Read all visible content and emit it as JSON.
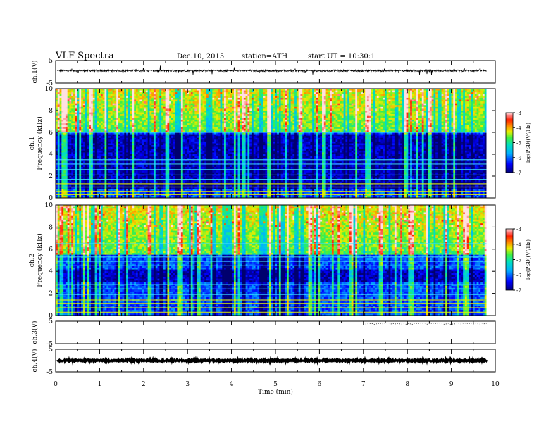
{
  "header": {
    "title": "VLF  Spectra",
    "date": "Dec.10, 2015",
    "station": "station=ATH",
    "start": "start  UT  =    10:30:1"
  },
  "chart_data": [
    {
      "type": "line",
      "name": "ch1-waveform",
      "ylabel": "ch.1(V)",
      "ylim": [
        -5,
        5
      ],
      "yticks": [
        "5",
        "-5"
      ],
      "baseline": 0.5,
      "noise_amplitude": 0.4,
      "spike_amplitude": 2.0
    },
    {
      "type": "heatmap",
      "name": "ch1-spectrogram",
      "ylabel": "ch.1\nFrequency (kHz)",
      "ylim": [
        0,
        10
      ],
      "yticks": [
        "0",
        "2",
        "4",
        "6",
        "8",
        "10"
      ],
      "colorbar": {
        "label": "log(PSD)(V²/Hz)",
        "range": [
          -7,
          -3
        ],
        "ticks": [
          "-3",
          "-4",
          "-5",
          "-6",
          "-7"
        ]
      },
      "quiet_band_khz": [
        0.8,
        5.8
      ],
      "bright_band_khz": [
        6.0,
        10.0
      ],
      "narrowband_lines_khz": [
        0.3,
        0.6,
        1.0,
        1.3,
        1.7,
        2.1,
        2.6,
        3.1,
        3.5,
        6.0
      ]
    },
    {
      "type": "heatmap",
      "name": "ch2-spectrogram",
      "ylabel": "ch.2\nFrequency (kHz)",
      "ylim": [
        0,
        10
      ],
      "yticks": [
        "0",
        "2",
        "4",
        "6",
        "8",
        "10"
      ],
      "colorbar": {
        "label": "log(PSD)(V²/Hz)",
        "range": [
          -7,
          -3
        ],
        "ticks": [
          "-3",
          "-4",
          "-5",
          "-6",
          "-7"
        ]
      },
      "quiet_band_khz": [
        3.0,
        4.2
      ],
      "bright_band_khz": [
        5.5,
        10.0
      ],
      "narrowband_lines_khz": [
        0.3,
        0.7,
        1.1,
        1.4,
        1.9,
        2.4,
        2.8,
        4.5,
        4.9,
        5.3,
        6.5
      ]
    },
    {
      "type": "line",
      "name": "ch3-waveform",
      "ylabel": "ch.3(V)",
      "ylim": [
        -5,
        5
      ],
      "yticks": [
        "5",
        "-5"
      ],
      "baseline": 5.0,
      "noise_amplitude": 0.0,
      "spike_amplitude": 0.0
    },
    {
      "type": "line",
      "name": "ch4-waveform",
      "ylabel": "ch.4(V)",
      "ylim": [
        -5,
        5
      ],
      "yticks": [
        "5",
        "-5"
      ],
      "baseline": 0.0,
      "noise_amplitude": 0.35,
      "spike_amplitude": 0.0
    }
  ],
  "x_axis": {
    "label": "Time  (min)",
    "range": [
      0,
      10
    ],
    "ticks": [
      "0",
      "1",
      "2",
      "3",
      "4",
      "5",
      "6",
      "7",
      "8",
      "9",
      "10"
    ],
    "data_end": 9.8
  }
}
